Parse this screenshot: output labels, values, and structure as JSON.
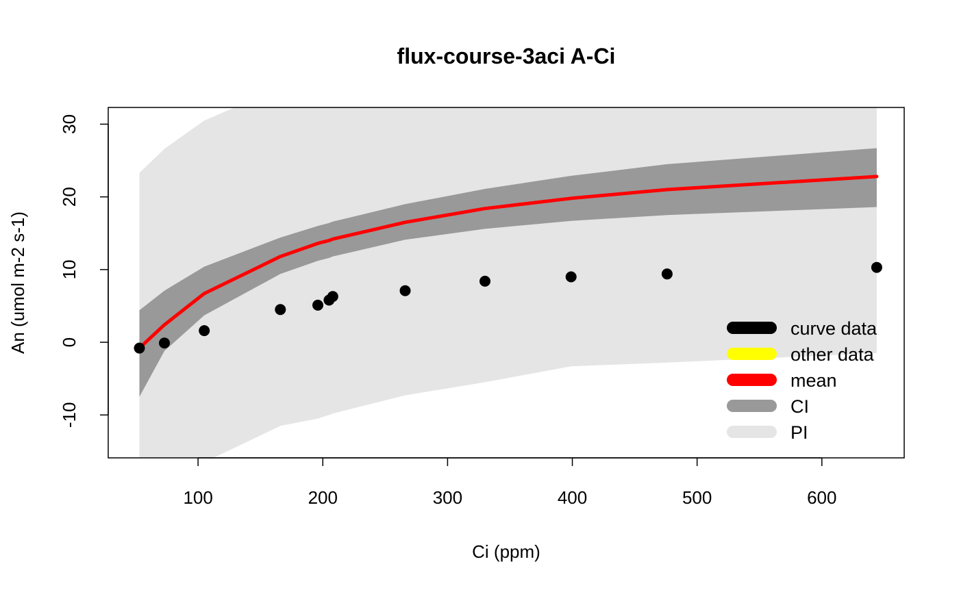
{
  "chart_data": {
    "type": "line",
    "title": "flux-course-3aci A-Ci",
    "xlabel": "Ci (ppm)",
    "ylabel": "An (umol m-2 s-1)",
    "xlim": [
      28,
      666
    ],
    "ylim": [
      -15.9,
      32.3
    ],
    "xticks": [
      100,
      200,
      300,
      400,
      500,
      600
    ],
    "yticks": [
      -10,
      0,
      10,
      20,
      30
    ],
    "xtick_labels": [
      "100",
      "200",
      "300",
      "400",
      "500",
      "600"
    ],
    "ytick_labels": [
      "-10",
      "0",
      "10",
      "20",
      "30"
    ],
    "grid": false,
    "legend_position": "bottom-right",
    "colors": {
      "curve_data": "#000000",
      "other_data": "#ffff00",
      "mean": "#ff0000",
      "ci": "#999999",
      "pi": "#e5e5e5"
    },
    "band_x": [
      53,
      73,
      105,
      166,
      196,
      205,
      208,
      266,
      330,
      399,
      476,
      644
    ],
    "series": [
      {
        "name": "mean",
        "x": [
          53,
          73,
          105,
          166,
          196,
          205,
          208,
          266,
          330,
          399,
          476,
          644
        ],
        "y": [
          -0.8,
          2.4,
          6.7,
          11.8,
          13.6,
          14.0,
          14.2,
          16.5,
          18.4,
          19.8,
          21.0,
          22.8
        ]
      },
      {
        "name": "CI",
        "x": [
          53,
          73,
          105,
          166,
          196,
          205,
          208,
          266,
          330,
          399,
          476,
          644
        ],
        "lower": [
          -7.5,
          -1.2,
          3.7,
          9.4,
          11.2,
          11.6,
          11.8,
          14.1,
          15.6,
          16.7,
          17.5,
          18.6
        ],
        "upper": [
          4.4,
          7.1,
          10.4,
          14.4,
          16.0,
          16.4,
          16.6,
          19.0,
          21.1,
          22.9,
          24.5,
          26.7
        ]
      },
      {
        "name": "PI",
        "x": [
          53,
          73,
          105,
          166,
          196,
          205,
          208,
          266,
          330,
          399,
          476,
          644
        ],
        "lower": [
          -16.5,
          -16.5,
          -16.5,
          -11.5,
          -10.5,
          -10.0,
          -9.8,
          -7.3,
          -5.5,
          -3.3,
          -2.8,
          -1.5
        ],
        "upper": [
          23.3,
          26.6,
          30.5,
          35.0,
          36.0,
          36.0,
          36.0,
          36.0,
          36.0,
          36.0,
          36.0,
          36.0
        ]
      },
      {
        "name": "curve data",
        "x": [
          53,
          73,
          105,
          166,
          196,
          205,
          208,
          266,
          330,
          399,
          476,
          644
        ],
        "y": [
          -0.8,
          -0.1,
          1.6,
          4.5,
          5.1,
          5.8,
          6.3,
          7.1,
          8.4,
          9.0,
          9.4,
          10.3
        ]
      }
    ],
    "legend": [
      {
        "label": "curve data",
        "color": "#000000"
      },
      {
        "label": "other data",
        "color": "#ffff00"
      },
      {
        "label": "mean",
        "color": "#ff0000"
      },
      {
        "label": "CI",
        "color": "#999999"
      },
      {
        "label": "PI",
        "color": "#e5e5e5"
      }
    ]
  }
}
